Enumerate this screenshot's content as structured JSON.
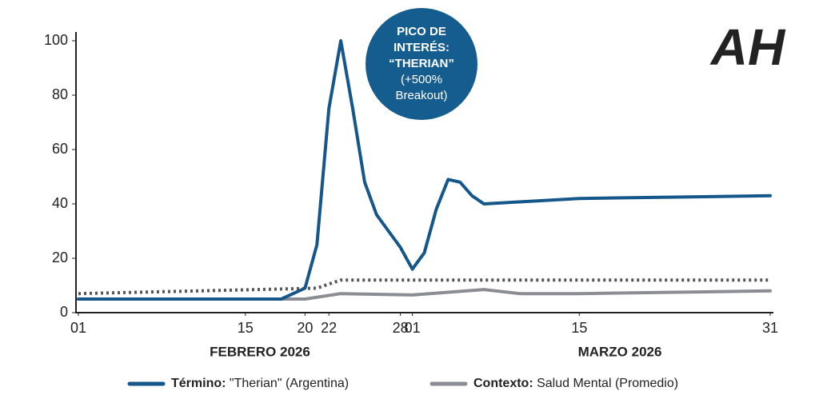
{
  "chart_data": {
    "type": "line",
    "annotation": [
      "PICO DE",
      "INTERÉS:",
      "“THERIAN”",
      "(+500%",
      "Breakout)"
    ],
    "logo": "AH",
    "x_group_labels": [
      "FEBRERO 2026",
      "MARZO 2026"
    ],
    "xlim": [
      0,
      58
    ],
    "xticks": [
      {
        "value": 0,
        "label": "01"
      },
      {
        "value": 14,
        "label": "15"
      },
      {
        "value": 19,
        "label": "20"
      },
      {
        "value": 21,
        "label": "22"
      },
      {
        "value": 27,
        "label": "28"
      },
      {
        "value": 28,
        "label": "01"
      },
      {
        "value": 42,
        "label": "15"
      },
      {
        "value": 58,
        "label": "31"
      }
    ],
    "ylim": [
      0,
      100
    ],
    "yticks": [
      0,
      20,
      40,
      60,
      80,
      100
    ],
    "grid": false,
    "series": [
      {
        "name": "Término: \"Therian\" (Argentina)",
        "color": "#15578a",
        "width": 4,
        "x": [
          0,
          7,
          14,
          17,
          19,
          20,
          21,
          22,
          23,
          24,
          25,
          26,
          27,
          28,
          29,
          30,
          31,
          32,
          33,
          34,
          38,
          42,
          50,
          58
        ],
        "values": [
          5,
          5,
          5,
          5,
          9,
          25,
          75,
          100,
          75,
          48,
          36,
          30,
          24,
          16,
          22,
          38,
          49,
          48,
          43,
          40,
          41,
          42,
          42.5,
          43
        ]
      },
      {
        "name": "Contexto: Salud Mental (Promedio)",
        "color": "#8a8d93",
        "width": 4,
        "x": [
          0,
          19,
          22,
          28,
          34,
          37,
          42,
          58
        ],
        "values": [
          5,
          5,
          7,
          6.5,
          8.5,
          7,
          7,
          8
        ]
      },
      {
        "color": "#555555",
        "width": 4,
        "dash": "3 4",
        "x": [
          0,
          20,
          22,
          58
        ],
        "values": [
          7,
          9,
          12,
          12
        ]
      }
    ]
  }
}
